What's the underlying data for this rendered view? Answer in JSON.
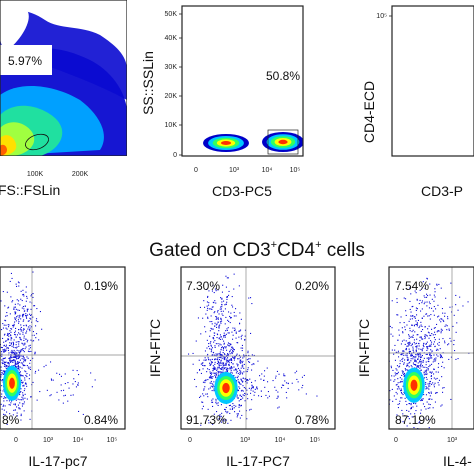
{
  "heading": {
    "prefix": "Gated on CD3",
    "sup1": "+",
    "mid": "CD4",
    "sup2": "+",
    "suffix": " cells"
  },
  "chart_data": [
    {
      "type": "scatter",
      "plot_style": "density",
      "xlabel": "FS::FSLin",
      "ylabel": "",
      "xticks": [
        "100K",
        "200K"
      ],
      "gate": "ellipse",
      "annotations": [
        "5.97%"
      ]
    },
    {
      "type": "scatter",
      "plot_style": "density",
      "xlabel": "CD3-PC5",
      "ylabel": "SS::SSLin",
      "xscale": "log",
      "xticks": [
        "0",
        "10³",
        "10⁴",
        "10⁵"
      ],
      "yticks": [
        "0",
        "10K",
        "20K",
        "30K",
        "40K",
        "50K"
      ],
      "gate": "rectangle",
      "annotations": [
        "50.8%"
      ]
    },
    {
      "type": "scatter",
      "plot_style": "density",
      "xlabel": "CD3-P",
      "ylabel": "CD4-ECD",
      "yticks": [
        "10⁵"
      ]
    },
    {
      "type": "scatter",
      "plot_style": "dot",
      "xlabel": "IL-17-pc7",
      "xticks": [
        "0",
        "10³",
        "10⁴",
        "10⁵"
      ],
      "quadrants": {
        "ul": "",
        "ur": "0.19%",
        "ll": "8%",
        "lr": "0.84%"
      }
    },
    {
      "type": "scatter",
      "plot_style": "dot",
      "xlabel": "IL-17-PC7",
      "ylabel": "IFN-FITC",
      "xticks": [
        "0",
        "10³",
        "10⁴",
        "10⁵"
      ],
      "quadrants": {
        "ul": "7.30%",
        "ur": "0.20%",
        "ll": "91.73%",
        "lr": "0.78%"
      }
    },
    {
      "type": "scatter",
      "plot_style": "dot",
      "xlabel": "IL-4-",
      "ylabel": "IFN-FITC",
      "xticks": [
        "0",
        "10³"
      ],
      "quadrants": {
        "ul": "7.54%",
        "ur": "",
        "ll": "87.19%",
        "lr": ""
      }
    }
  ],
  "colors": {
    "low": "#0000c8",
    "mid": "#00c8ff",
    "mid2": "#30ff60",
    "high": "#ffff00",
    "peak": "#ff3000",
    "dot": "#1010d8"
  }
}
